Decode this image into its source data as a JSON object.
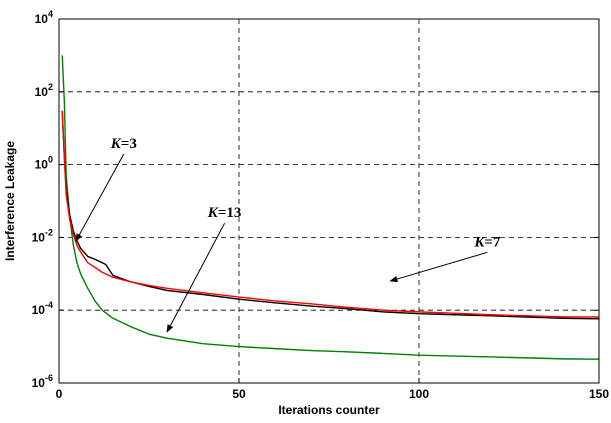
{
  "chart_data": {
    "type": "line",
    "xlabel": "Iterations counter",
    "ylabel": "Interference Leakage",
    "xlim": [
      0,
      150
    ],
    "ylim_log10": [
      -6,
      4
    ],
    "yscale": "log",
    "grid": true,
    "x_ticks": [
      {
        "value": 0,
        "label": "0"
      },
      {
        "value": 50,
        "label": "50"
      },
      {
        "value": 100,
        "label": "100"
      },
      {
        "value": 150,
        "label": "150"
      }
    ],
    "y_ticks": [
      {
        "exp": -6,
        "base": "10",
        "sup": "-6"
      },
      {
        "exp": -4,
        "base": "10",
        "sup": "-4"
      },
      {
        "exp": -2,
        "base": "10",
        "sup": "-2"
      },
      {
        "exp": 0,
        "base": "10",
        "sup": "0"
      },
      {
        "exp": 2,
        "base": "10",
        "sup": "2"
      },
      {
        "exp": 4,
        "base": "10",
        "sup": "4"
      }
    ],
    "series": [
      {
        "color": "#008000",
        "x": [
          0.9,
          1.5,
          2,
          3,
          4,
          5,
          6,
          8,
          10,
          12,
          15,
          20,
          25,
          30,
          40,
          50,
          60,
          70,
          80,
          90,
          100,
          110,
          120,
          130,
          140,
          150
        ],
        "y": [
          1000,
          50,
          0.5,
          0.035,
          0.006,
          0.002,
          0.001,
          0.0004,
          0.00018,
          0.0001,
          6e-05,
          3.5e-05,
          2.2e-05,
          1.7e-05,
          1.2e-05,
          1e-05,
          8.8e-06,
          7.8e-06,
          7.2e-06,
          6.5e-06,
          5.8e-06,
          5.5e-06,
          5.2e-06,
          4.9e-06,
          4.6e-06,
          4.5e-06
        ]
      },
      {
        "color": "#000000",
        "x": [
          0.9,
          1.5,
          2,
          3,
          4,
          5,
          6,
          8,
          10,
          13,
          15,
          20,
          25,
          30,
          40,
          50,
          60,
          70,
          80,
          90,
          100,
          110,
          120,
          130,
          140,
          150
        ],
        "y": [
          30,
          1.5,
          0.2,
          0.04,
          0.015,
          0.008,
          0.005,
          0.003,
          0.0025,
          0.0018,
          0.0009,
          0.0006,
          0.00045,
          0.00035,
          0.00027,
          0.0002,
          0.00016,
          0.00013,
          0.00011,
          9e-05,
          8e-05,
          7.5e-05,
          7e-05,
          6.5e-05,
          6e-05,
          5.8e-05
        ]
      },
      {
        "color": "#ff0000",
        "x": [
          0.9,
          1.5,
          2,
          3,
          4,
          5,
          6,
          8,
          10,
          12,
          15,
          20,
          25,
          30,
          40,
          50,
          60,
          70,
          80,
          90,
          100,
          110,
          120,
          130,
          140,
          150
        ],
        "y": [
          30,
          1.5,
          0.15,
          0.03,
          0.012,
          0.006,
          0.004,
          0.002,
          0.0015,
          0.0011,
          0.0008,
          0.0006,
          0.00048,
          0.0004,
          0.0003,
          0.00023,
          0.00018,
          0.00015,
          0.00012,
          0.0001,
          9e-05,
          8.2e-05,
          7.5e-05,
          7e-05,
          6.6e-05,
          6.5e-05
        ]
      }
    ],
    "annotations": [
      {
        "italic": "K",
        "rest": "=3",
        "x": 18,
        "y_log10": 0.4,
        "arrow_to": [
          4.7,
          -2.1
        ]
      },
      {
        "italic": "K",
        "rest": "=13",
        "x": 46,
        "y_log10": -1.5,
        "arrow_to": [
          30,
          -4.6
        ]
      },
      {
        "italic": "K",
        "rest": "=7",
        "x": 119,
        "y_log10": -2.3,
        "arrow_to": [
          92,
          -3.2
        ]
      }
    ]
  }
}
